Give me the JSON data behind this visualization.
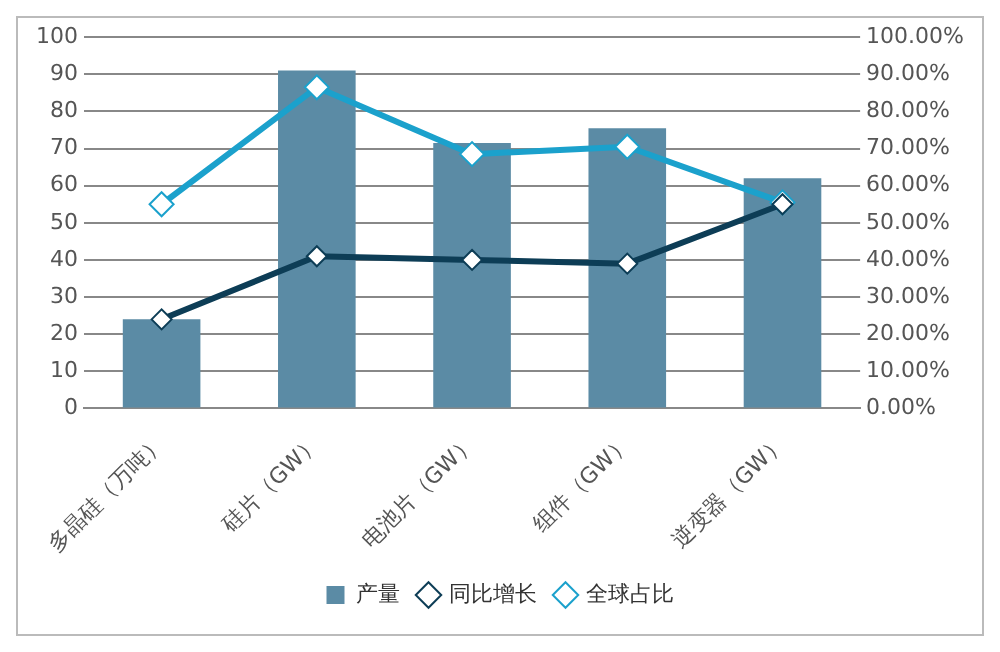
{
  "chart_data": {
    "type": "bar",
    "categories": [
      "多晶硅（万吨）",
      "硅片（GW）",
      "电池片（GW）",
      "组件（GW）",
      "逆变器（GW）"
    ],
    "series": [
      {
        "name": "产量",
        "color": "#5b8ba5",
        "values": [
          24,
          91,
          71.5,
          75.5,
          62
        ]
      },
      {
        "name": "同比增长",
        "type": "line",
        "axis": "y2",
        "color": "#0d3d56",
        "marker": "diamond",
        "values": [
          24,
          41,
          40,
          39,
          55
        ]
      },
      {
        "name": "全球占比",
        "type": "line",
        "axis": "y2",
        "color": "#1ba1cc",
        "marker": "diamond",
        "values": [
          55,
          86.5,
          68.5,
          70.5,
          55.5
        ]
      }
    ],
    "ylim": [
      0,
      100
    ],
    "yticks": [
      0,
      10,
      20,
      30,
      40,
      50,
      60,
      70,
      80,
      90,
      100
    ],
    "y2lim": [
      0,
      100
    ],
    "y2ticks": [
      {
        "value": 0,
        "label": "0.00%"
      },
      {
        "value": 10,
        "label": "10.00%"
      },
      {
        "value": 20,
        "label": "20.00%"
      },
      {
        "value": 30,
        "label": "30.00%"
      },
      {
        "value": 40,
        "label": "40.00%"
      },
      {
        "value": 50,
        "label": "50.00%"
      },
      {
        "value": 60,
        "label": "60.00%"
      },
      {
        "value": 70,
        "label": "70.00%"
      },
      {
        "value": 80,
        "label": "80.00%"
      },
      {
        "value": 90,
        "label": "90.00%"
      },
      {
        "value": 100,
        "label": "100.00%"
      }
    ],
    "grid": "y",
    "legend": "bottom"
  }
}
